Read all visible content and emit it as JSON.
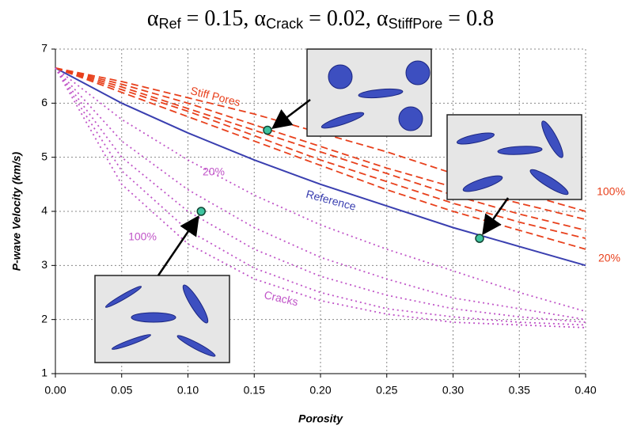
{
  "chart_data": {
    "type": "line",
    "title": [
      "α",
      "Ref",
      " = 0.15, α",
      "Crack",
      " = 0.02, α",
      "StiffPore",
      " = 0.8"
    ],
    "xlabel": "Porosity",
    "ylabel": "P-wave Velocity (km/s)",
    "x": [
      0,
      0.05,
      0.1,
      0.15,
      0.2,
      0.25,
      0.3,
      0.35,
      0.4
    ],
    "xlim": [
      0,
      0.4
    ],
    "ylim": [
      1,
      7
    ],
    "xticks": [
      {
        "value": 0,
        "label": "0.00"
      },
      {
        "value": 0.05,
        "label": "0.05"
      },
      {
        "value": 0.1,
        "label": "0.10"
      },
      {
        "value": 0.15,
        "label": "0.15"
      },
      {
        "value": 0.2,
        "label": "0.20"
      },
      {
        "value": 0.25,
        "label": "0.25"
      },
      {
        "value": 0.3,
        "label": "0.30"
      },
      {
        "value": 0.35,
        "label": "0.35"
      },
      {
        "value": 0.4,
        "label": "0.40"
      }
    ],
    "yticks": [
      1,
      2,
      3,
      4,
      5,
      6,
      7
    ],
    "grid": true,
    "series": [
      {
        "color": "#3a3fb0",
        "line_style": "solid",
        "values": [
          6.65,
          6.0,
          5.45,
          4.95,
          4.5,
          4.1,
          3.7,
          3.35,
          3.0
        ]
      },
      {
        "color": "#e8401c",
        "line_style": "dashed",
        "values": [
          6.65,
          6.4,
          6.1,
          5.8,
          5.45,
          5.1,
          4.7,
          4.35,
          4.0
        ]
      },
      {
        "color": "#e8401c",
        "line_style": "dashed",
        "values": [
          6.65,
          6.35,
          6.0,
          5.6,
          5.2,
          4.8,
          4.45,
          4.15,
          3.85
        ]
      },
      {
        "color": "#e8401c",
        "line_style": "dashed",
        "values": [
          6.65,
          6.3,
          5.9,
          5.5,
          5.1,
          4.7,
          4.3,
          3.95,
          3.65
        ]
      },
      {
        "color": "#e8401c",
        "line_style": "dashed",
        "values": [
          6.65,
          6.25,
          5.85,
          5.4,
          4.95,
          4.55,
          4.15,
          3.8,
          3.5
        ]
      },
      {
        "color": "#e8401c",
        "line_style": "dashed",
        "values": [
          6.65,
          6.2,
          5.75,
          5.3,
          4.85,
          4.4,
          4.0,
          3.65,
          3.3
        ]
      },
      {
        "color": "#c055c8",
        "line_style": "dotted",
        "values": [
          6.65,
          5.7,
          4.95,
          4.3,
          3.75,
          3.3,
          2.9,
          2.5,
          2.15
        ]
      },
      {
        "color": "#c055c8",
        "line_style": "dotted",
        "values": [
          6.65,
          5.3,
          4.4,
          3.7,
          3.15,
          2.75,
          2.4,
          2.2,
          2.0
        ]
      },
      {
        "color": "#c055c8",
        "line_style": "dotted",
        "values": [
          6.65,
          5.0,
          4.0,
          3.3,
          2.8,
          2.45,
          2.2,
          2.05,
          1.95
        ]
      },
      {
        "color": "#c055c8",
        "line_style": "dotted",
        "values": [
          6.65,
          4.75,
          3.65,
          2.95,
          2.5,
          2.2,
          2.05,
          1.95,
          1.9
        ]
      },
      {
        "color": "#c055c8",
        "line_style": "dotted",
        "values": [
          6.65,
          4.5,
          3.4,
          2.75,
          2.35,
          2.1,
          1.95,
          1.9,
          1.85
        ]
      }
    ],
    "points": {
      "x": [
        0.16,
        0.11,
        0.32
      ],
      "y": [
        5.5,
        4.0,
        3.5
      ],
      "color": "#3fc4a0"
    },
    "annotations": [
      {
        "text": "Stiff Pores",
        "color": "#e8401c"
      },
      {
        "text": "Reference",
        "color": "#3a3fb0"
      },
      {
        "text": "Cracks",
        "color": "#c055c8"
      },
      {
        "text": "100%",
        "color": "#e8401c"
      },
      {
        "text": "20%",
        "color": "#e8401c"
      },
      {
        "text": "20%",
        "color": "#c055c8"
      },
      {
        "text": "100%",
        "color": "#c055c8"
      }
    ]
  }
}
